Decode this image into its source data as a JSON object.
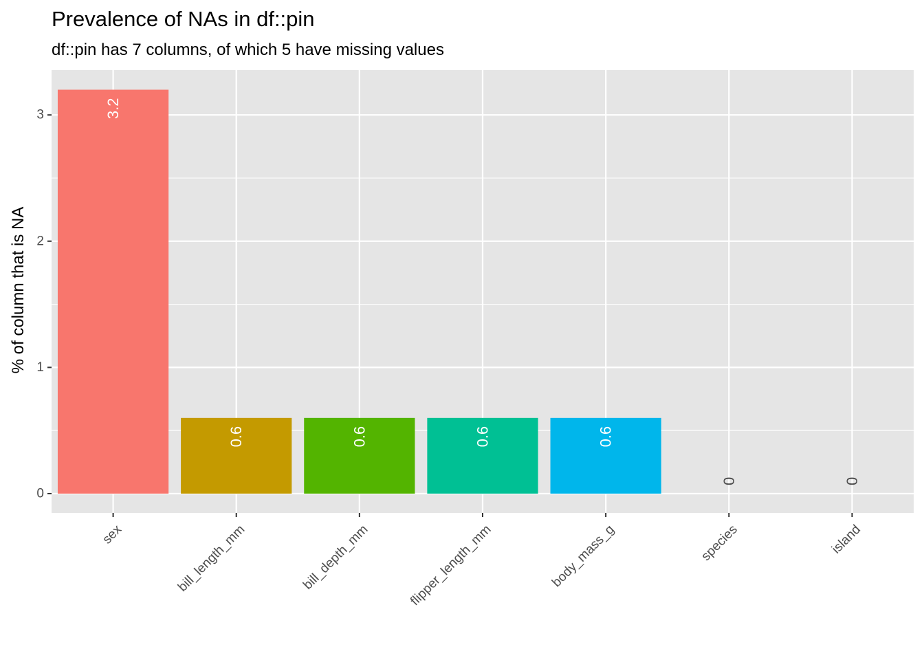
{
  "chart_data": {
    "type": "bar",
    "title": "Prevalence of NAs in df::pin",
    "subtitle": "df::pin has 7 columns, of which 5 have missing values",
    "xlabel": "",
    "ylabel": "% of column that is NA",
    "categories": [
      "sex",
      "bill_length_mm",
      "bill_depth_mm",
      "flipper_length_mm",
      "body_mass_g",
      "species",
      "island"
    ],
    "values": [
      3.2,
      0.6,
      0.6,
      0.6,
      0.6,
      0,
      0
    ],
    "value_labels": [
      "3.2",
      "0.6",
      "0.6",
      "0.6",
      "0.6",
      "0",
      "0"
    ],
    "colors": [
      "#F8766D",
      "#C49A00",
      "#53B400",
      "#00C094",
      "#00B6EB",
      "#A58AFF",
      "#FB61D7"
    ],
    "yticks": [
      0,
      1,
      2,
      3
    ],
    "ylim": [
      -0.15,
      3.36
    ],
    "grid": true,
    "legend": "none",
    "panel_background": "#E5E5E5",
    "grid_color": "#FFFFFF"
  }
}
